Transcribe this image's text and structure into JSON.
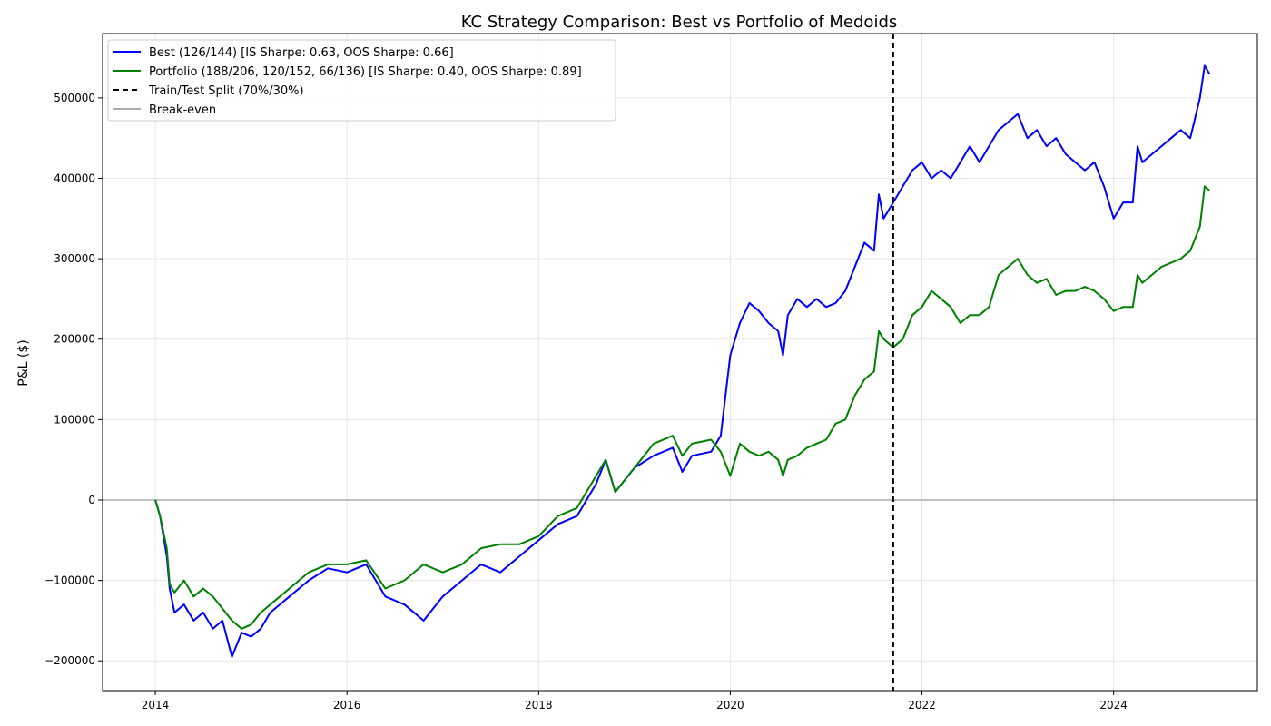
{
  "chart_data": {
    "type": "line",
    "title": "KC Strategy Comparison: Best vs Portfolio of Medoids",
    "xlabel": "",
    "ylabel": "P&L ($)",
    "xlim": [
      2013.45,
      2025.5
    ],
    "ylim": [
      -237000,
      580000
    ],
    "x_ticks": [
      2014,
      2016,
      2018,
      2020,
      2022,
      2024
    ],
    "x_tick_labels": [
      "2014",
      "2016",
      "2018",
      "2020",
      "2022",
      "2024"
    ],
    "y_ticks": [
      -200000,
      -100000,
      0,
      100000,
      200000,
      300000,
      400000,
      500000
    ],
    "y_tick_labels": [
      "−200000",
      "−100000",
      "0",
      "100000",
      "200000",
      "300000",
      "400000",
      "500000"
    ],
    "grid": true,
    "legend_position": "upper-left",
    "split_x": 2021.7,
    "baseline_y": 0,
    "series": [
      {
        "name": "Best (126/144) [IS Sharpe: 0.63, OOS Sharpe: 0.66]",
        "color": "#0000ff",
        "x": [
          2014.0,
          2014.05,
          2014.12,
          2014.15,
          2014.2,
          2014.3,
          2014.4,
          2014.5,
          2014.6,
          2014.7,
          2014.8,
          2014.9,
          2015.0,
          2015.1,
          2015.2,
          2015.4,
          2015.6,
          2015.8,
          2016.0,
          2016.2,
          2016.4,
          2016.6,
          2016.8,
          2017.0,
          2017.2,
          2017.4,
          2017.6,
          2017.8,
          2018.0,
          2018.2,
          2018.4,
          2018.6,
          2018.7,
          2018.8,
          2019.0,
          2019.2,
          2019.4,
          2019.5,
          2019.6,
          2019.8,
          2019.9,
          2020.0,
          2020.1,
          2020.2,
          2020.3,
          2020.4,
          2020.5,
          2020.55,
          2020.6,
          2020.7,
          2020.8,
          2020.9,
          2021.0,
          2021.1,
          2021.2,
          2021.3,
          2021.4,
          2021.5,
          2021.55,
          2021.6,
          2021.7,
          2021.8,
          2021.9,
          2022.0,
          2022.1,
          2022.2,
          2022.3,
          2022.4,
          2022.5,
          2022.6,
          2022.7,
          2022.8,
          2022.9,
          2023.0,
          2023.1,
          2023.2,
          2023.3,
          2023.4,
          2023.5,
          2023.6,
          2023.7,
          2023.8,
          2023.9,
          2024.0,
          2024.1,
          2024.2,
          2024.25,
          2024.3,
          2024.4,
          2024.5,
          2024.6,
          2024.7,
          2024.8,
          2024.9,
          2024.95,
          2025.0
        ],
        "y": [
          0,
          -20000,
          -70000,
          -110000,
          -140000,
          -130000,
          -150000,
          -140000,
          -160000,
          -150000,
          -195000,
          -165000,
          -170000,
          -160000,
          -140000,
          -120000,
          -100000,
          -85000,
          -90000,
          -80000,
          -120000,
          -130000,
          -150000,
          -120000,
          -100000,
          -80000,
          -90000,
          -70000,
          -50000,
          -30000,
          -20000,
          20000,
          50000,
          10000,
          40000,
          55000,
          65000,
          35000,
          55000,
          60000,
          80000,
          180000,
          220000,
          245000,
          235000,
          220000,
          210000,
          180000,
          230000,
          250000,
          240000,
          250000,
          240000,
          245000,
          260000,
          290000,
          320000,
          310000,
          380000,
          350000,
          370000,
          390000,
          410000,
          420000,
          400000,
          410000,
          400000,
          420000,
          440000,
          420000,
          440000,
          460000,
          470000,
          480000,
          450000,
          460000,
          440000,
          450000,
          430000,
          420000,
          410000,
          420000,
          390000,
          350000,
          370000,
          370000,
          440000,
          420000,
          430000,
          440000,
          450000,
          460000,
          450000,
          500000,
          540000,
          530000
        ]
      },
      {
        "name": "Portfolio (188/206, 120/152, 66/136) [IS Sharpe: 0.40, OOS Sharpe: 0.89]",
        "color": "#008000",
        "x": [
          2014.0,
          2014.05,
          2014.12,
          2014.15,
          2014.2,
          2014.3,
          2014.4,
          2014.5,
          2014.6,
          2014.7,
          2014.8,
          2014.9,
          2015.0,
          2015.1,
          2015.2,
          2015.4,
          2015.6,
          2015.8,
          2016.0,
          2016.2,
          2016.4,
          2016.6,
          2016.8,
          2017.0,
          2017.2,
          2017.4,
          2017.6,
          2017.8,
          2018.0,
          2018.2,
          2018.4,
          2018.6,
          2018.7,
          2018.8,
          2019.0,
          2019.2,
          2019.4,
          2019.5,
          2019.6,
          2019.8,
          2019.9,
          2020.0,
          2020.1,
          2020.2,
          2020.3,
          2020.4,
          2020.5,
          2020.55,
          2020.6,
          2020.7,
          2020.8,
          2020.9,
          2021.0,
          2021.1,
          2021.2,
          2021.3,
          2021.4,
          2021.5,
          2021.55,
          2021.6,
          2021.7,
          2021.8,
          2021.9,
          2022.0,
          2022.1,
          2022.2,
          2022.3,
          2022.4,
          2022.5,
          2022.6,
          2022.7,
          2022.8,
          2022.9,
          2023.0,
          2023.1,
          2023.2,
          2023.3,
          2023.4,
          2023.5,
          2023.6,
          2023.7,
          2023.8,
          2023.9,
          2024.0,
          2024.1,
          2024.2,
          2024.25,
          2024.3,
          2024.4,
          2024.5,
          2024.6,
          2024.7,
          2024.8,
          2024.9,
          2024.95,
          2025.0
        ],
        "y": [
          0,
          -20000,
          -60000,
          -105000,
          -115000,
          -100000,
          -120000,
          -110000,
          -120000,
          -135000,
          -150000,
          -160000,
          -155000,
          -140000,
          -130000,
          -110000,
          -90000,
          -80000,
          -80000,
          -75000,
          -110000,
          -100000,
          -80000,
          -90000,
          -80000,
          -60000,
          -55000,
          -55000,
          -45000,
          -20000,
          -10000,
          30000,
          50000,
          10000,
          40000,
          70000,
          80000,
          55000,
          70000,
          75000,
          60000,
          30000,
          70000,
          60000,
          55000,
          60000,
          50000,
          30000,
          50000,
          55000,
          65000,
          70000,
          75000,
          95000,
          100000,
          130000,
          150000,
          160000,
          210000,
          200000,
          190000,
          200000,
          230000,
          240000,
          260000,
          250000,
          240000,
          220000,
          230000,
          230000,
          240000,
          280000,
          290000,
          300000,
          280000,
          270000,
          275000,
          255000,
          260000,
          260000,
          265000,
          260000,
          250000,
          235000,
          240000,
          240000,
          280000,
          270000,
          280000,
          290000,
          295000,
          300000,
          310000,
          340000,
          390000,
          385000
        ]
      }
    ],
    "legend": [
      {
        "label": "Best (126/144) [IS Sharpe: 0.63, OOS Sharpe: 0.66]",
        "color": "#0000ff",
        "style": "solid"
      },
      {
        "label": "Portfolio (188/206, 120/152, 66/136) [IS Sharpe: 0.40, OOS Sharpe: 0.89]",
        "color": "#008000",
        "style": "solid"
      },
      {
        "label": "Train/Test Split (70%/30%)",
        "color": "#000000",
        "style": "dashed"
      },
      {
        "label": "Break-even",
        "color": "#aaaaaa",
        "style": "solid"
      }
    ]
  }
}
